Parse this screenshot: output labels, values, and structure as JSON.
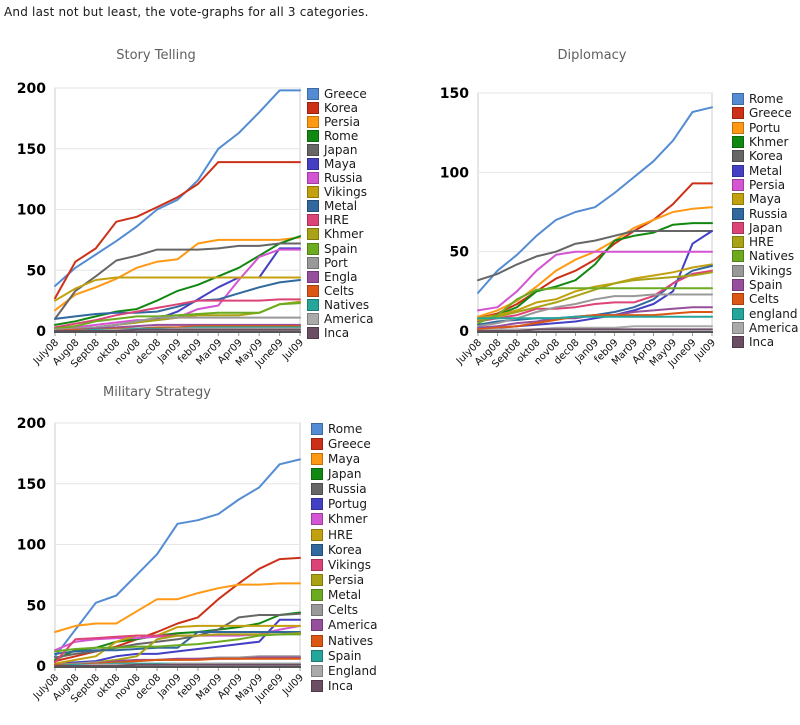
{
  "header": {
    "text": "And last not but least, the vote-graphs for all 3 categories."
  },
  "palette": [
    "#548cd4",
    "#cc3118",
    "#ff9914",
    "#118811",
    "#666666",
    "#4340c4",
    "#d355d3",
    "#c3a10e",
    "#31699e",
    "#dc4477",
    "#a8a214",
    "#6cab20",
    "#999999",
    "#954f9b",
    "#dc5713",
    "#26a69a",
    "#aaaaaa",
    "#6b4e63"
  ],
  "chart_data": [
    {
      "type": "line",
      "title": "Story Telling",
      "ylim": [
        0,
        200
      ],
      "yticks": [
        0,
        50,
        100,
        150,
        200
      ],
      "grid": true,
      "legend_position": "right",
      "categories": [
        "July08",
        "Aug08",
        "Sept08",
        "okt08",
        "nov08",
        "dec08",
        "Jan09",
        "feb09",
        "Mar09",
        "Apr09",
        "May09",
        "June09",
        "Jul09"
      ],
      "series": [
        {
          "name": "Greece",
          "values": [
            37,
            52,
            63,
            74,
            86,
            100,
            108,
            124,
            150,
            163,
            180,
            198,
            198
          ]
        },
        {
          "name": "Korea",
          "values": [
            27,
            57,
            68,
            90,
            94,
            102,
            110,
            121,
            139,
            139,
            139,
            139,
            139
          ]
        },
        {
          "name": "Persia",
          "values": [
            17,
            30,
            36,
            43,
            52,
            57,
            59,
            72,
            75,
            75,
            75,
            75,
            77
          ]
        },
        {
          "name": "Rome",
          "values": [
            5,
            8,
            12,
            16,
            18,
            25,
            33,
            38,
            45,
            52,
            62,
            72,
            78
          ]
        },
        {
          "name": "Japan",
          "values": [
            10,
            33,
            45,
            58,
            62,
            67,
            67,
            67,
            68,
            70,
            70,
            72,
            72
          ]
        },
        {
          "name": "Maya",
          "values": [
            1,
            2,
            3,
            5,
            7,
            10,
            16,
            26,
            36,
            44,
            44,
            68,
            68
          ]
        },
        {
          "name": "Russia",
          "values": [
            2,
            3,
            5,
            7,
            9,
            9,
            11,
            18,
            21,
            42,
            61,
            67,
            67
          ]
        },
        {
          "name": "Vikings",
          "values": [
            25,
            35,
            42,
            44,
            44,
            44,
            44,
            44,
            44,
            44,
            44,
            44,
            44
          ]
        },
        {
          "name": "Metal",
          "values": [
            10,
            12,
            14,
            15,
            15,
            16,
            20,
            25,
            26,
            31,
            36,
            40,
            42
          ]
        },
        {
          "name": "HRE",
          "values": [
            3,
            6,
            9,
            13,
            16,
            19,
            22,
            25,
            25,
            25,
            25,
            26,
            26
          ]
        },
        {
          "name": "Khmer",
          "values": [
            1,
            2,
            3,
            5,
            7,
            9,
            11,
            13,
            13,
            13,
            15,
            22,
            24
          ]
        },
        {
          "name": "Spain",
          "values": [
            2,
            4,
            8,
            10,
            12,
            12,
            13,
            14,
            15,
            15,
            15,
            22,
            23
          ]
        },
        {
          "name": "Port",
          "values": [
            1,
            2,
            3,
            5,
            8,
            11,
            11,
            11,
            11,
            11,
            11,
            11,
            11
          ]
        },
        {
          "name": "Engla",
          "values": [
            0,
            1,
            2,
            3,
            4,
            5,
            5,
            5,
            5,
            5,
            5,
            5,
            5
          ]
        },
        {
          "name": "Celts",
          "values": [
            0,
            1,
            1,
            2,
            2,
            3,
            3,
            4,
            4,
            4,
            4,
            4,
            4
          ]
        },
        {
          "name": "Natives",
          "values": [
            0,
            0,
            1,
            1,
            2,
            2,
            2,
            3,
            3,
            3,
            3,
            3,
            3
          ]
        },
        {
          "name": "America",
          "values": [
            0,
            0,
            0,
            1,
            1,
            1,
            2,
            2,
            2,
            2,
            2,
            2,
            2
          ]
        },
        {
          "name": "Inca",
          "values": [
            0,
            0,
            0,
            0,
            1,
            1,
            1,
            1,
            1,
            1,
            1,
            1,
            1
          ]
        }
      ]
    },
    {
      "type": "line",
      "title": "Diplomacy",
      "ylim": [
        0,
        150
      ],
      "yticks": [
        0,
        50,
        100,
        150
      ],
      "grid": true,
      "legend_position": "right",
      "categories": [
        "July08",
        "Aug08",
        "Sept08",
        "okt08",
        "nov08",
        "dec08",
        "Jan09",
        "feb09",
        "Mar09",
        "Apr09",
        "May09",
        "June09",
        "Jul09"
      ],
      "series": [
        {
          "name": "Rome",
          "values": [
            24,
            38,
            48,
            60,
            70,
            75,
            78,
            87,
            97,
            107,
            120,
            138,
            141
          ]
        },
        {
          "name": "Greece",
          "values": [
            8,
            11,
            17,
            25,
            33,
            38,
            45,
            55,
            63,
            70,
            80,
            93,
            93
          ]
        },
        {
          "name": "Portu",
          "values": [
            9,
            13,
            19,
            28,
            38,
            45,
            50,
            57,
            65,
            70,
            75,
            77,
            78
          ]
        },
        {
          "name": "Khmer",
          "values": [
            8,
            10,
            15,
            25,
            28,
            32,
            42,
            57,
            60,
            62,
            67,
            68,
            68
          ]
        },
        {
          "name": "Korea",
          "values": [
            32,
            36,
            42,
            47,
            50,
            55,
            57,
            60,
            63,
            63,
            63,
            63,
            63
          ]
        },
        {
          "name": "Metal",
          "values": [
            1,
            2,
            3,
            4,
            5,
            6,
            8,
            10,
            13,
            17,
            25,
            55,
            63
          ]
        },
        {
          "name": "Persia",
          "values": [
            13,
            15,
            25,
            38,
            48,
            50,
            50,
            50,
            50,
            50,
            50,
            50,
            50
          ]
        },
        {
          "name": "Maya",
          "values": [
            8,
            10,
            13,
            18,
            20,
            25,
            28,
            30,
            33,
            35,
            37,
            40,
            42
          ]
        },
        {
          "name": "Russia",
          "values": [
            4,
            6,
            7,
            8,
            8,
            9,
            10,
            12,
            15,
            20,
            30,
            38,
            41
          ]
        },
        {
          "name": "Japan",
          "values": [
            6,
            8,
            10,
            14,
            14,
            15,
            17,
            18,
            18,
            22,
            30,
            36,
            38
          ]
        },
        {
          "name": "HRE",
          "values": [
            7,
            9,
            12,
            15,
            18,
            22,
            26,
            30,
            32,
            33,
            34,
            35,
            37
          ]
        },
        {
          "name": "Natives",
          "values": [
            5,
            10,
            20,
            26,
            27,
            27,
            27,
            27,
            27,
            27,
            27,
            27,
            27
          ]
        },
        {
          "name": "Vikings",
          "values": [
            3,
            5,
            8,
            12,
            15,
            17,
            20,
            22,
            22,
            23,
            23,
            23,
            23
          ]
        },
        {
          "name": "Spain",
          "values": [
            2,
            3,
            5,
            6,
            8,
            8,
            10,
            10,
            12,
            13,
            14,
            15,
            15
          ]
        },
        {
          "name": "Celts",
          "values": [
            1,
            2,
            3,
            5,
            7,
            9,
            10,
            10,
            10,
            10,
            11,
            12,
            12
          ]
        },
        {
          "name": "england",
          "values": [
            8,
            8,
            8,
            8,
            8,
            9,
            9,
            9,
            9,
            9,
            9,
            9,
            9
          ]
        },
        {
          "name": "America",
          "values": [
            0,
            1,
            1,
            1,
            2,
            2,
            2,
            2,
            3,
            3,
            3,
            3,
            3
          ]
        },
        {
          "name": "Inca",
          "values": [
            0,
            0,
            0,
            1,
            1,
            1,
            1,
            1,
            1,
            1,
            1,
            1,
            1
          ]
        }
      ]
    },
    {
      "type": "line",
      "title": "Military Strategy",
      "ylim": [
        0,
        200
      ],
      "yticks": [
        0,
        50,
        100,
        150,
        200
      ],
      "grid": true,
      "legend_position": "right",
      "categories": [
        "July08",
        "Aug08",
        "Sept08",
        "okt08",
        "nov08",
        "dec08",
        "Jan09",
        "feb09",
        "Mar09",
        "Apr09",
        "May09",
        "June09",
        "Jul09"
      ],
      "series": [
        {
          "name": "Rome",
          "values": [
            8,
            30,
            52,
            58,
            75,
            92,
            117,
            120,
            125,
            137,
            147,
            166,
            170
          ]
        },
        {
          "name": "Greece",
          "values": [
            4,
            8,
            12,
            16,
            22,
            28,
            35,
            40,
            55,
            68,
            80,
            88,
            89
          ]
        },
        {
          "name": "Maya",
          "values": [
            28,
            33,
            35,
            35,
            45,
            55,
            55,
            60,
            64,
            67,
            67,
            68,
            68
          ]
        },
        {
          "name": "Japan",
          "values": [
            5,
            13,
            15,
            20,
            22,
            25,
            27,
            28,
            30,
            32,
            35,
            42,
            44
          ]
        },
        {
          "name": "Russia",
          "values": [
            7,
            10,
            12,
            15,
            18,
            20,
            22,
            25,
            30,
            40,
            42,
            42,
            43
          ]
        },
        {
          "name": "Portug",
          "values": [
            2,
            3,
            4,
            8,
            10,
            10,
            12,
            14,
            16,
            18,
            20,
            38,
            38
          ]
        },
        {
          "name": "Khmer",
          "values": [
            13,
            20,
            22,
            23,
            23,
            24,
            25,
            25,
            25,
            25,
            26,
            30,
            33
          ]
        },
        {
          "name": "HRE",
          "values": [
            2,
            5,
            8,
            20,
            25,
            25,
            32,
            33,
            33,
            33,
            33,
            33,
            33
          ]
        },
        {
          "name": "Korea",
          "values": [
            10,
            12,
            13,
            13,
            14,
            15,
            15,
            28,
            28,
            28,
            28,
            28,
            28
          ]
        },
        {
          "name": "Vikings",
          "values": [
            3,
            22,
            23,
            24,
            25,
            25,
            25,
            25,
            26,
            26,
            26,
            26,
            27
          ]
        },
        {
          "name": "Persia",
          "values": [
            1,
            2,
            3,
            5,
            8,
            22,
            25,
            25,
            26,
            26,
            26,
            26,
            27
          ]
        },
        {
          "name": "Metal",
          "values": [
            12,
            14,
            15,
            15,
            16,
            16,
            17,
            18,
            20,
            22,
            25,
            26,
            26
          ]
        },
        {
          "name": "Celts",
          "values": [
            1,
            2,
            3,
            3,
            4,
            5,
            5,
            6,
            7,
            7,
            8,
            8,
            8
          ]
        },
        {
          "name": "America",
          "values": [
            0,
            1,
            2,
            4,
            5,
            5,
            6,
            6,
            6,
            6,
            7,
            7,
            7
          ]
        },
        {
          "name": "Natives",
          "values": [
            1,
            1,
            2,
            3,
            4,
            5,
            5,
            5,
            6,
            6,
            6,
            6,
            6
          ]
        },
        {
          "name": "Spain",
          "values": [
            0,
            1,
            1,
            2,
            2,
            2,
            2,
            2,
            2,
            2,
            2,
            2,
            2
          ]
        },
        {
          "name": "England",
          "values": [
            0,
            0,
            1,
            1,
            1,
            1,
            2,
            2,
            2,
            2,
            2,
            2,
            2
          ]
        },
        {
          "name": "Inca",
          "values": [
            0,
            0,
            0,
            0,
            1,
            1,
            1,
            1,
            1,
            1,
            1,
            1,
            1
          ]
        }
      ]
    }
  ]
}
